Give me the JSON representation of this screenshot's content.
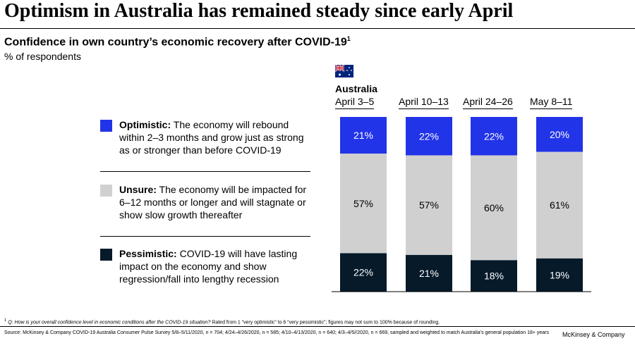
{
  "header": {
    "title": "Optimism in Australia has remained steady since early April",
    "subtitle": "Confidence in own country’s economic recovery after COVID-19",
    "subtitle_sup": "1",
    "unit": "% of respondents"
  },
  "legend": [
    {
      "label": "Optimistic:",
      "desc": " The economy will rebound within 2–3 months and grow just as strong as or stronger than before COVID-19",
      "color": "#2234e8"
    },
    {
      "label": "Unsure:",
      "desc": " The economy will be impacted for 6–12 months or longer and will stagnate or show slow growth thereafter",
      "color": "#d0d0d0"
    },
    {
      "label": "Pessimistic:",
      "desc": " COVID-19 will have lasting impact on the economy and show regression/fall into lengthy recession",
      "color": "#061a2a"
    }
  ],
  "country": {
    "name": "Australia",
    "flag_icon": "australia-flag-icon"
  },
  "chart_data": {
    "type": "bar",
    "stacked": true,
    "categories": [
      "April 3–5",
      "April 10–13",
      "April 24–26",
      "May 8–11"
    ],
    "series": [
      {
        "name": "Optimistic",
        "values": [
          21,
          22,
          22,
          20
        ],
        "color": "#2234e8"
      },
      {
        "name": "Unsure",
        "values": [
          57,
          57,
          60,
          61
        ],
        "color": "#d0d0d0"
      },
      {
        "name": "Pessimistic",
        "values": [
          22,
          21,
          18,
          19
        ],
        "color": "#061a2a"
      }
    ],
    "value_suffix": "%",
    "ylim": [
      0,
      100
    ]
  },
  "footer": {
    "footnote_mark": "1",
    "footnote_question": " Q: How is your overall confidence level in economic conditions after the COVID-19 situation?",
    "footnote_rest": " Rated from 1 “very optimistic” to 6 “very pessimistic”; figures may not sum to 100% because of rounding.",
    "source": "Source: McKinsey & Company COVID-19 Australia Consumer Pulse Survey 5/8–5/11/2020, n = 704; 4/24–4/26/2020, n = 585; 4/10–4/13/2020, n = 640; 4/3–4/5//2020, n = 669, sampled and weighted to match Australia’s general population 18+ years",
    "brand": "McKinsey & Company"
  }
}
